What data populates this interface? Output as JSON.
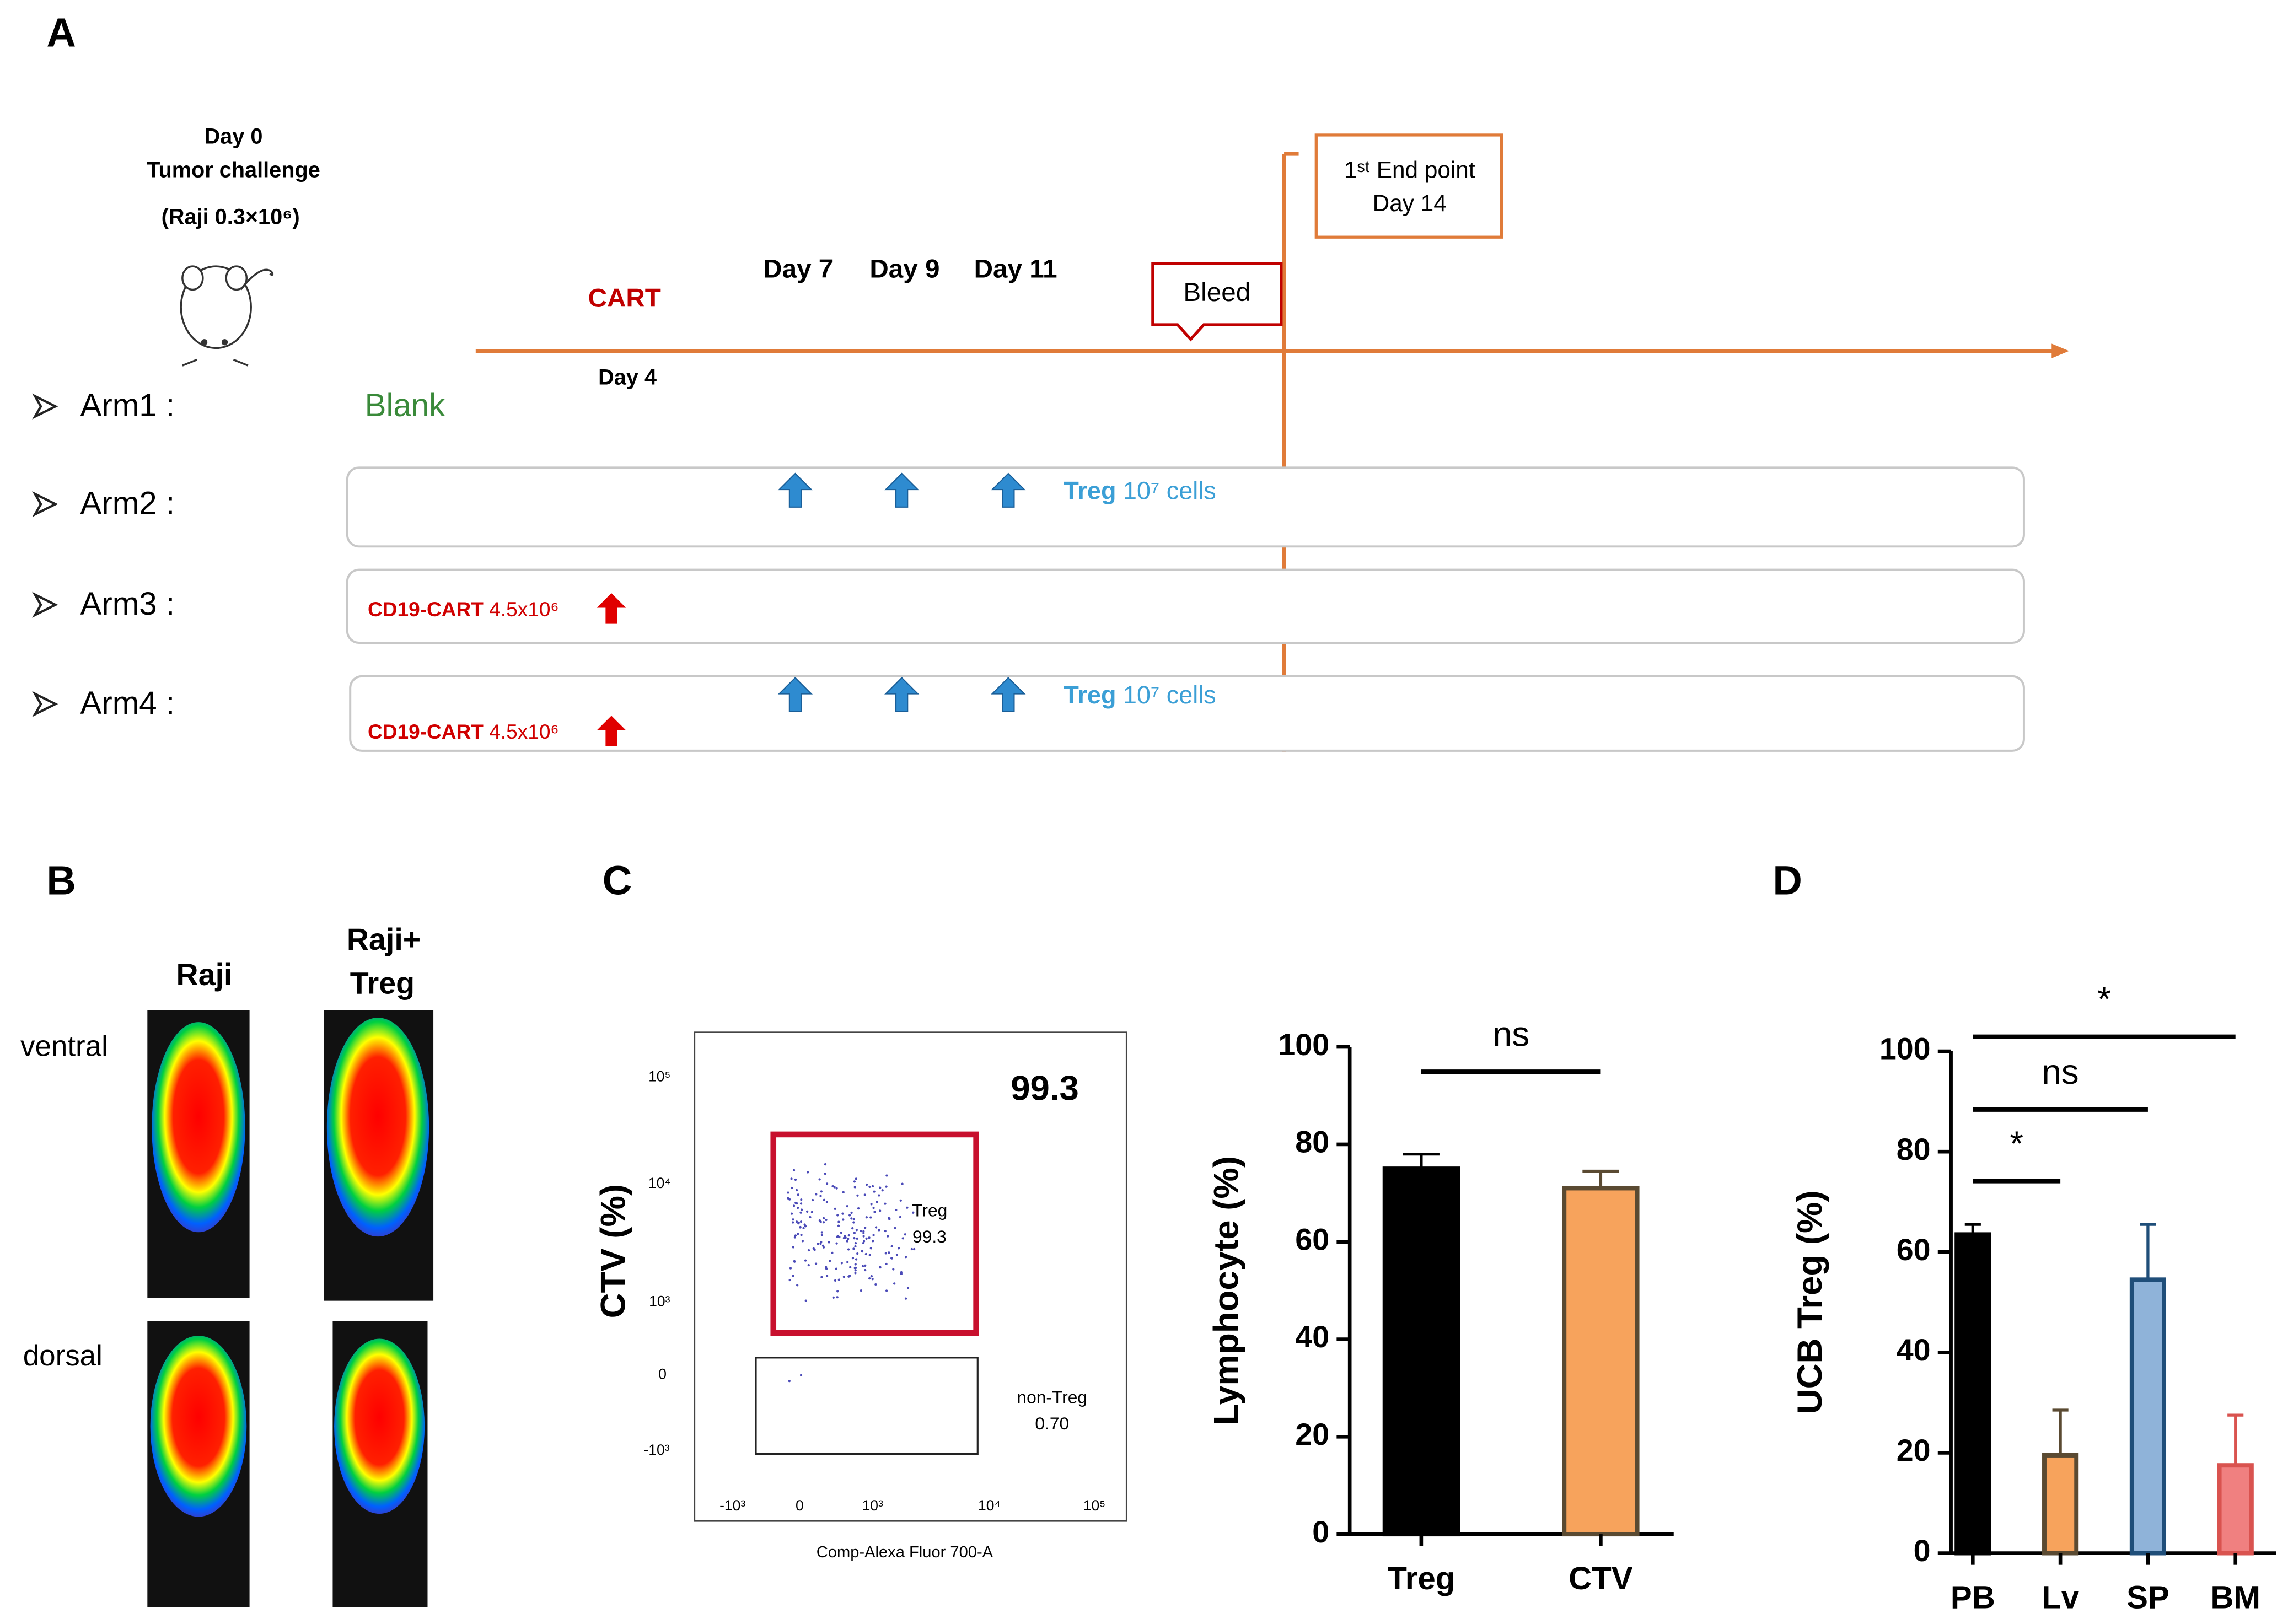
{
  "panel_labels": [
    "A",
    "B",
    "C",
    "D"
  ],
  "timeline": {
    "day0": "Day 0",
    "challenge": "Tumor challenge",
    "raji_dose": "(Raji 0.3×10⁶)",
    "cart": "CART",
    "day4": "Day 4",
    "days": [
      "Day 7",
      "Day 9",
      "Day 11"
    ],
    "bleed": "Bleed",
    "endpoint": "1ˢᵗ End point",
    "endpoint_day": "Day 14",
    "arms": [
      {
        "label": "Arm1 :",
        "note": "Blank"
      },
      {
        "label": "Arm2 :",
        "treg": "Treg",
        "treg_dose": "10⁷ cells"
      },
      {
        "label": "Arm3 :",
        "cart": "CD19-CART",
        "cart_dose": "4.5x10⁶"
      },
      {
        "label": "Arm4 :",
        "treg": "Treg",
        "treg_dose": "10⁷ cells",
        "cart": "CD19-CART",
        "cart_dose": "4.5x10⁶"
      }
    ]
  },
  "imaging": {
    "col1": "Raji",
    "col2": [
      "Raji+",
      "Treg"
    ],
    "rows": [
      "ventral",
      "dorsal"
    ]
  },
  "flow": {
    "headline": "99.3",
    "gate": "Treg",
    "gate_value": "99.3",
    "other_gate": "non-Treg",
    "other_value": "0.70",
    "yticks": [
      "10⁵",
      "10⁴",
      "10³",
      "0",
      "-10³"
    ],
    "xticks": [
      "-10³",
      "0",
      "10³",
      "10⁴",
      "10⁵"
    ],
    "ylabel": "CTV (%)",
    "xlabel": "Comp-Alexa Fluor 700-A"
  },
  "chart_data": [
    {
      "type": "bar",
      "ylabel": "Lymphocyte (%)",
      "categories": [
        "Treg",
        "CTV"
      ],
      "values": [
        75,
        71
      ],
      "errors": [
        3,
        3.5
      ],
      "colors": [
        "#000000",
        "#f7a35c"
      ],
      "edge_colors": [
        "#000000",
        "#5a4a32"
      ],
      "ylim": [
        0,
        100
      ],
      "yticks": [
        0,
        20,
        40,
        60,
        80,
        100
      ],
      "annotations": [
        "ns"
      ]
    },
    {
      "type": "bar",
      "ylabel": "UCB Treg (%)",
      "categories": [
        "PB",
        "Lv",
        "SP",
        "BM"
      ],
      "values": [
        63.5,
        19.5,
        54.5,
        17.5
      ],
      "errors": [
        2,
        9,
        11,
        10
      ],
      "colors": [
        "#000000",
        "#f7a35c",
        "#8fb3d9",
        "#f08080"
      ],
      "edge_colors": [
        "#000000",
        "#5a4a32",
        "#1f4e79",
        "#d9534f"
      ],
      "ylim": [
        0,
        100
      ],
      "yticks": [
        0,
        20,
        40,
        60,
        80,
        100
      ],
      "annotations": [
        "*",
        "ns",
        "*"
      ]
    }
  ]
}
